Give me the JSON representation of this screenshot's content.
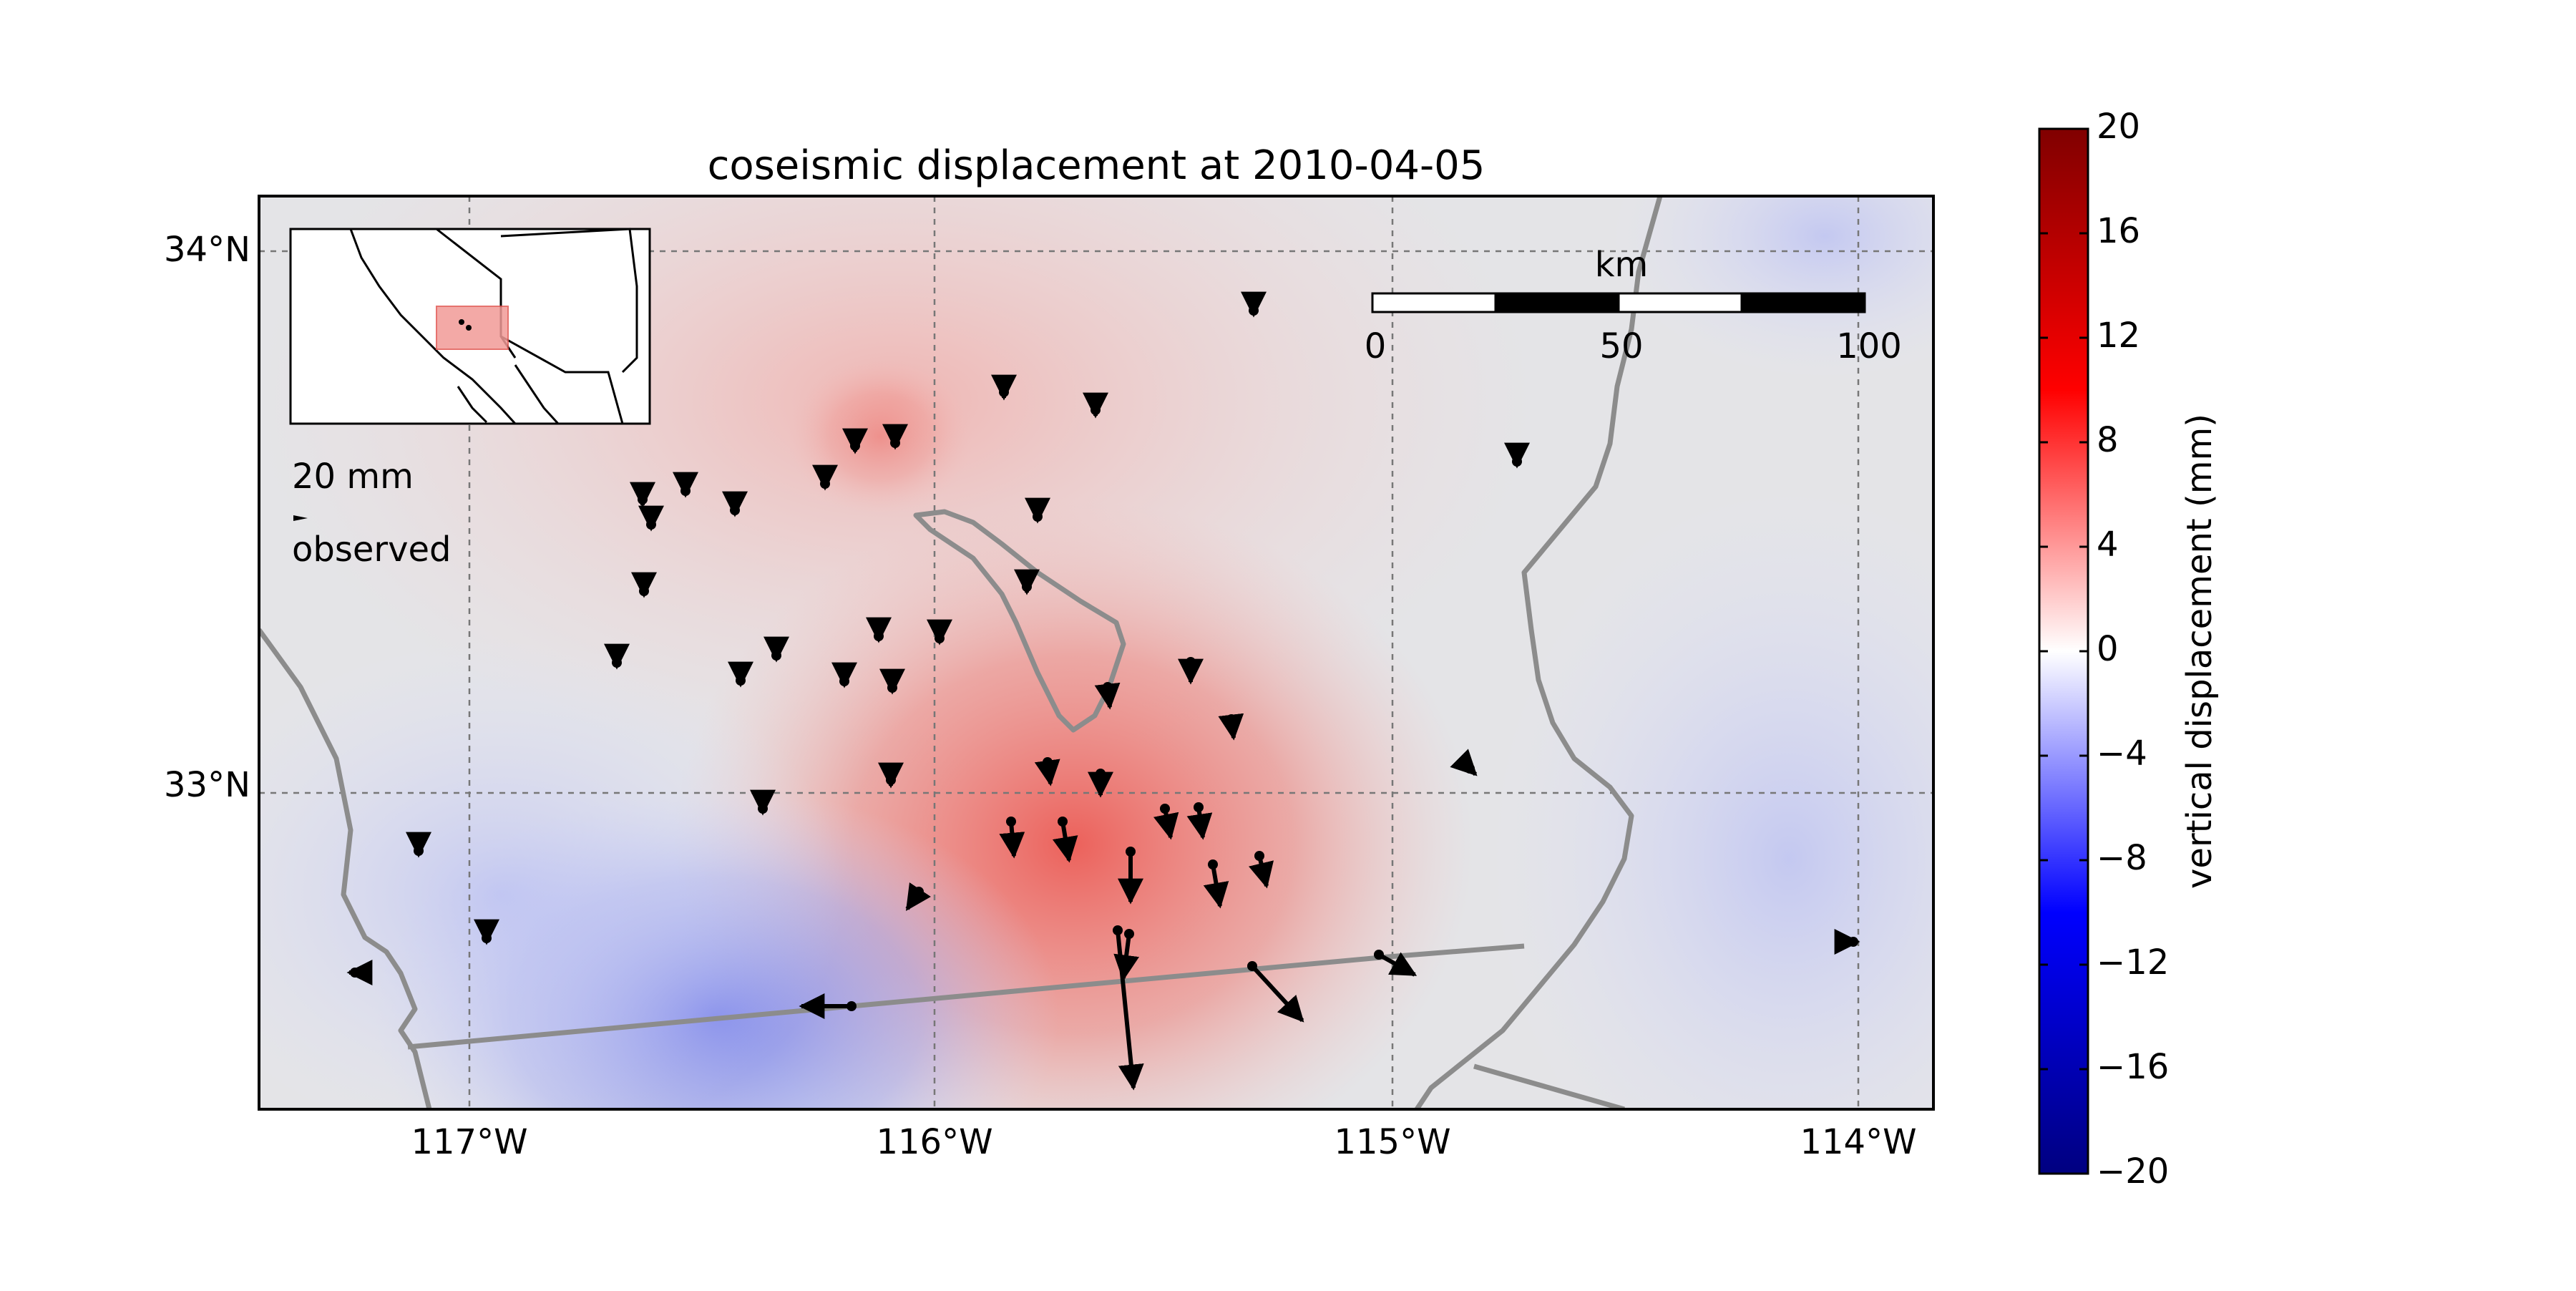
{
  "title": "coseismic displacement at 2010-04-05",
  "lat_labels": [
    "34°N",
    "33°N"
  ],
  "lon_labels": [
    "117°W",
    "116°W",
    "115°W",
    "114°W"
  ],
  "scale_bar": {
    "unit": "km",
    "ticks": [
      "0",
      "50",
      "100"
    ]
  },
  "vector_key": {
    "magnitude": "20 mm",
    "label": "observed"
  },
  "colorbar": {
    "label": "vertical displacement (mm)",
    "ticks": [
      "20",
      "16",
      "12",
      "8",
      "4",
      "0",
      "−4",
      "−8",
      "−12",
      "−16",
      "−20"
    ],
    "range": [
      -20,
      20
    ]
  },
  "colors": {
    "positive": "#e8322a",
    "negative": "#2a3fe0",
    "border": "#8c8c8c",
    "vector": "#000000"
  },
  "icons": [
    "inset-locator-map",
    "vector-scale-arrow"
  ]
}
